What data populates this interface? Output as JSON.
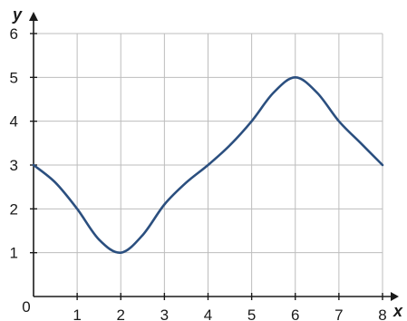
{
  "chart_data": {
    "type": "line",
    "title": "",
    "xlabel": "x",
    "ylabel": "y",
    "xlim": [
      0,
      8
    ],
    "ylim": [
      0,
      6
    ],
    "grid": true,
    "x_ticks": [
      "0",
      "1",
      "2",
      "3",
      "4",
      "5",
      "6",
      "7",
      "8"
    ],
    "y_ticks": [
      "1",
      "2",
      "3",
      "4",
      "5",
      "6"
    ],
    "series": [
      {
        "color": "#2b4f7f",
        "x": [
          0,
          0.5,
          1,
          1.5,
          2,
          2.5,
          3,
          3.5,
          4,
          4.5,
          5,
          5.5,
          6,
          6.5,
          7,
          7.5,
          8
        ],
        "y": [
          3,
          2.6,
          2,
          1.3,
          1,
          1.4,
          2.1,
          2.6,
          3,
          3.45,
          4,
          4.65,
          5,
          4.65,
          4,
          3.5,
          3
        ]
      }
    ]
  }
}
